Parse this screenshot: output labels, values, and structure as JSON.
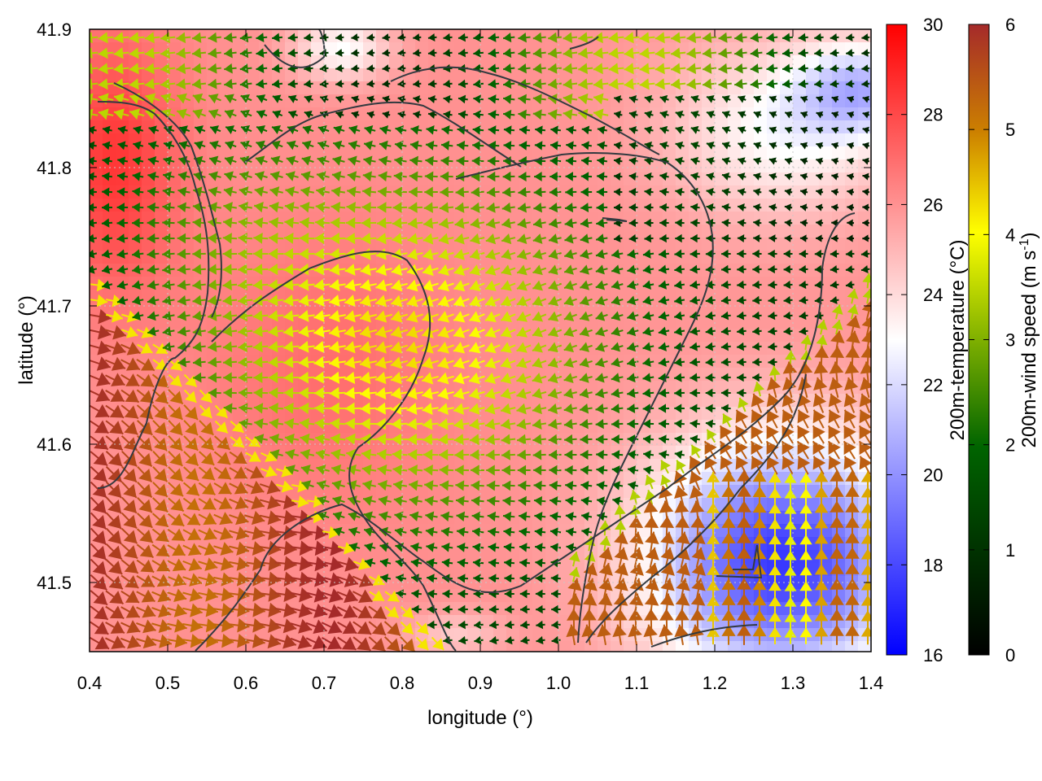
{
  "chart_data": {
    "type": "heatmap",
    "title": "",
    "xlabel": "longitude (°)",
    "ylabel": "latitude (°)",
    "xlim": [
      0.4,
      1.4
    ],
    "ylim": [
      41.45,
      41.9
    ],
    "grid": true,
    "x_ticks": [
      "0.4",
      "0.5",
      "0.6",
      "0.7",
      "0.8",
      "0.9",
      "1.0",
      "1.1",
      "1.2",
      "1.3",
      "1.4"
    ],
    "y_ticks": [
      "41.5",
      "41.6",
      "41.7",
      "41.8",
      "41.9"
    ],
    "layers": {
      "color_field": "200m-temperature",
      "arrows": "200m-wind vectors",
      "contours": "terrain"
    },
    "temperature_colorbar": {
      "label": "200m-temperature (°C)",
      "range": [
        16,
        30
      ],
      "ticks": [
        "16",
        "18",
        "20",
        "22",
        "24",
        "26",
        "28",
        "30"
      ],
      "colors": [
        "#0000ff",
        "#ffffff",
        "#ff0000"
      ]
    },
    "wind_colorbar": {
      "label_main": "200m-wind speed (m s",
      "label_sup": "-1",
      "label_end": ")",
      "range": [
        0,
        6
      ],
      "ticks": [
        "0",
        "1",
        "2",
        "3",
        "4",
        "5",
        "6"
      ],
      "colors": [
        "#000000",
        "#006400",
        "#ffff00",
        "#a52a2a"
      ]
    }
  }
}
